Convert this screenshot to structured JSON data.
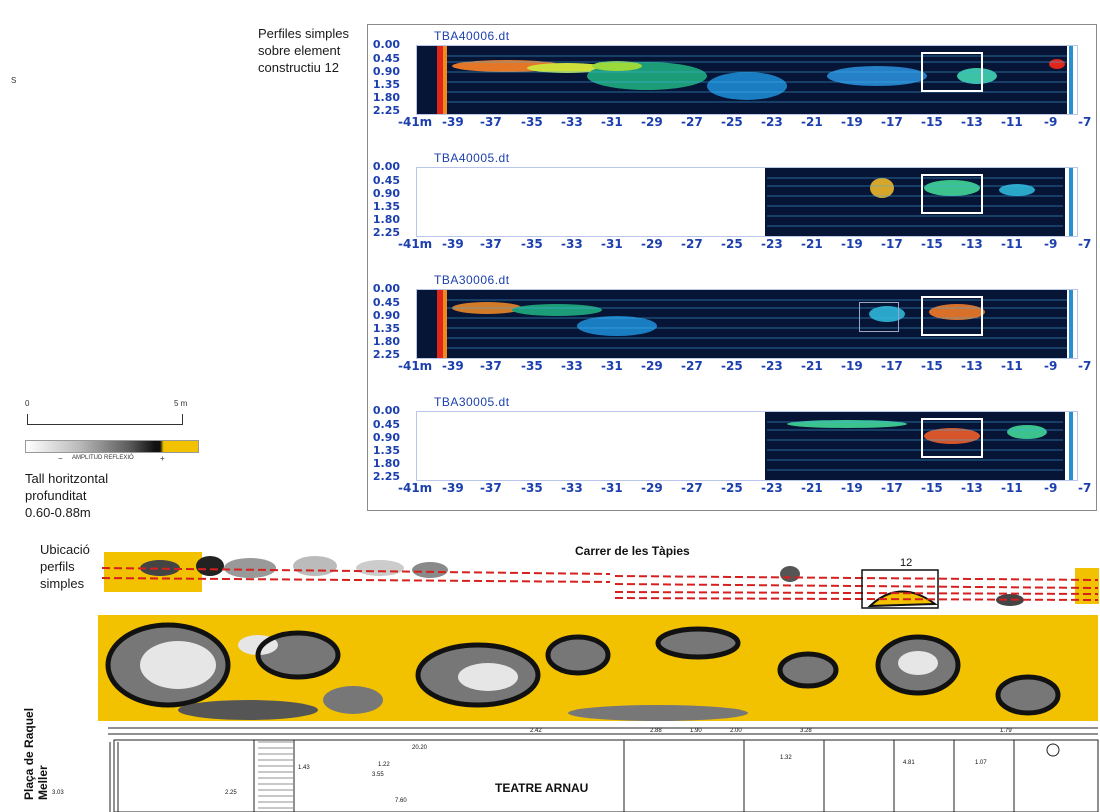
{
  "profiles_label": "Perfiles simples\nsobre element\nconstructiu 12",
  "side_mark": "S",
  "depth_ticks": [
    "0.00",
    "0.45",
    "0.90",
    "1.35",
    "1.80",
    "2.25"
  ],
  "x_ticks": [
    "-41m",
    "-39",
    "-37",
    "-35",
    "-33",
    "-31",
    "-29",
    "-27",
    "-25",
    "-23",
    "-21",
    "-19",
    "-17",
    "-15",
    "-13",
    "-11",
    "-9",
    "-7"
  ],
  "profiles": [
    {
      "title": "TBA40006.dt",
      "coverage": [
        -41,
        -7
      ]
    },
    {
      "title": "TBA40005.dt",
      "coverage": [
        -23,
        -9
      ]
    },
    {
      "title": "TBA30006.dt",
      "coverage": [
        -41,
        -7
      ]
    },
    {
      "title": "TBA30005.dt",
      "coverage": [
        -23,
        -9
      ]
    }
  ],
  "scale": {
    "start": "0",
    "end": "5 m"
  },
  "colorbar": {
    "minus": "−",
    "label": "AMPLITUD REFLEXIÓ",
    "plus": "+",
    "colors": [
      "#ffffff",
      "#9a9a9a",
      "#111111",
      "#f2c200"
    ]
  },
  "slice_label": "Tall horitzontal\nprofunditat\n0.60-0.88m",
  "location_label": "Ubicació\nperfils\nsimples",
  "street_label": "Carrer de les Tàpies",
  "element_number": "12",
  "plaza_label": "Plaça de Raquel\nMeller",
  "building_label": "TEATRE ARNAU",
  "plan_dims": [
    "3.03",
    "2.25",
    "20.20",
    "3.55",
    "1.43",
    "1.22",
    "7.60",
    "4.81",
    "1.07",
    "1.32",
    "2.42",
    "2.88",
    "1.90",
    "2.00",
    "3.28",
    "1.79"
  ],
  "colors": {
    "axis_text": "#1c3fae",
    "radar_bg": "#061436",
    "gpr_yellow": "#f2c200",
    "profile_line": "#d62020"
  }
}
